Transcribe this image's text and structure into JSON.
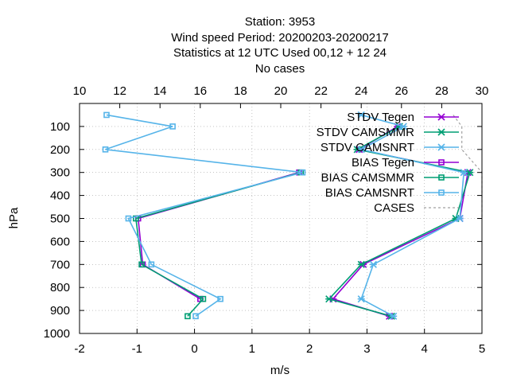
{
  "chart_data": {
    "type": "line",
    "title_lines": [
      "Station:      3953",
      "Wind speed  Period: 20200203-20200217",
      "Statistics at 12 UTC  Used  00,12  + 12 24",
      "No cases"
    ],
    "xlabel": "m/s",
    "ylabel": "hPa",
    "xlim": [
      -2,
      5
    ],
    "x2lim": [
      10,
      30
    ],
    "ylim": [
      1000,
      0
    ],
    "xticks": [
      "-2",
      "-1",
      "0",
      "1",
      "2",
      "3",
      "4",
      "5"
    ],
    "x2ticks": [
      "10",
      "12",
      "14",
      "16",
      "18",
      "20",
      "22",
      "24",
      "26",
      "28",
      "30"
    ],
    "yticks": [
      "100",
      "200",
      "300",
      "400",
      "500",
      "600",
      "700",
      "800",
      "900",
      "1000"
    ],
    "grid": true,
    "legend_position": "top-right",
    "series": [
      {
        "name": "STDV Tegen",
        "axis": "x2",
        "color": "#9400d3",
        "marker": "x",
        "points": [
          [
            25.8,
            100
          ],
          [
            23.9,
            200
          ],
          [
            29.3,
            300
          ],
          [
            28.9,
            500
          ],
          [
            24.1,
            700
          ],
          [
            22.6,
            850
          ],
          [
            25.4,
            925
          ]
        ]
      },
      {
        "name": "STDV CAMSMMR",
        "axis": "x2",
        "color": "#009e73",
        "marker": "x",
        "points": [
          [
            25.9,
            100
          ],
          [
            23.8,
            200
          ],
          [
            29.4,
            300
          ],
          [
            28.7,
            500
          ],
          [
            24.0,
            700
          ],
          [
            22.4,
            850
          ],
          [
            25.5,
            925
          ]
        ]
      },
      {
        "name": "STDV CAMSNRT",
        "axis": "x2",
        "color": "#56b4e9",
        "marker": "x",
        "points": [
          [
            24.0,
            50
          ],
          [
            26.1,
            100
          ],
          [
            24.0,
            200
          ],
          [
            29.1,
            300
          ],
          [
            28.9,
            500
          ],
          [
            24.6,
            700
          ],
          [
            24.0,
            850
          ],
          [
            25.6,
            925
          ]
        ]
      },
      {
        "name": "BIAS Tegen",
        "axis": "x",
        "color": "#9400d3",
        "marker": "square",
        "points": [
          [
            1.82,
            300
          ],
          [
            -0.98,
            500
          ],
          [
            -0.9,
            700
          ],
          [
            0.1,
            850
          ]
        ]
      },
      {
        "name": "BIAS CAMSMMR",
        "axis": "x",
        "color": "#009e73",
        "marker": "square",
        "points": [
          [
            1.85,
            300
          ],
          [
            -1.02,
            500
          ],
          [
            -0.92,
            700
          ],
          [
            0.15,
            850
          ],
          [
            -0.12,
            925
          ]
        ]
      },
      {
        "name": "BIAS CAMSNRT",
        "axis": "x",
        "color": "#56b4e9",
        "marker": "square",
        "points": [
          [
            -1.53,
            50
          ],
          [
            -0.38,
            100
          ],
          [
            -1.55,
            200
          ],
          [
            1.88,
            300
          ],
          [
            -1.15,
            500
          ],
          [
            -0.75,
            700
          ],
          [
            0.45,
            850
          ],
          [
            0.02,
            925
          ]
        ]
      },
      {
        "name": "CASES",
        "axis": "x",
        "color": "#a0a0a0",
        "marker": "dashed",
        "points": [
          [
            4.5,
            50
          ],
          [
            4.65,
            100
          ],
          [
            4.65,
            150
          ],
          [
            4.65,
            200
          ],
          [
            5.0,
            300
          ],
          [
            5.0,
            500
          ]
        ]
      }
    ]
  }
}
